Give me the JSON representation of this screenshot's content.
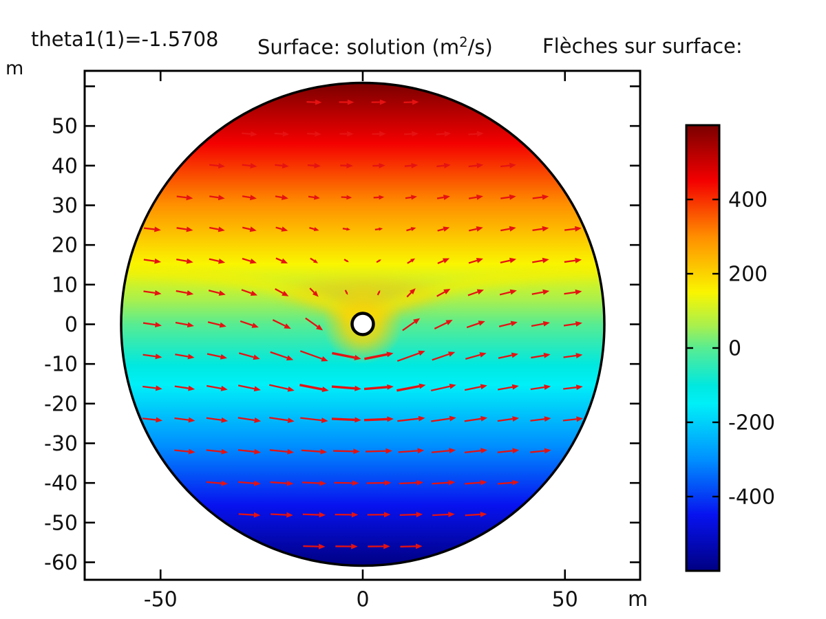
{
  "title": {
    "param": "theta1(1)=-1.5708",
    "surface_pre": "Surface: solution (m",
    "surface_sup": "2",
    "surface_post": "/s)",
    "arrows": "Flèches sur surface:"
  },
  "axes": {
    "x": {
      "unit_label": "m",
      "tick_labels": [
        "-50",
        "0",
        "50"
      ],
      "tick_values": [
        -50,
        0,
        50
      ]
    },
    "y": {
      "unit_label": "m",
      "tick_labels": [
        "50",
        "40",
        "30",
        "20",
        "10",
        "0",
        "-10",
        "-20",
        "-30",
        "-40",
        "-50",
        "-60"
      ],
      "tick_values": [
        50,
        40,
        30,
        20,
        10,
        0,
        -10,
        -20,
        -30,
        -40,
        -50,
        -60
      ],
      "frame_tick_values": [
        60,
        50,
        40,
        30,
        20,
        10,
        0,
        -10,
        -20,
        -30,
        -40,
        -50,
        -60
      ]
    }
  },
  "colorbar": {
    "tick_labels": [
      "400",
      "200",
      "0",
      "-200",
      "-400"
    ],
    "tick_values": [
      400,
      200,
      0,
      -200,
      -400
    ],
    "value_range": [
      -600,
      600
    ],
    "colormap": "rainbow-jet",
    "stops": [
      [
        "#7A0000",
        0.0
      ],
      [
        "#F40000",
        0.125
      ],
      [
        "#FF8E00",
        0.25
      ],
      [
        "#FAF500",
        0.375
      ],
      [
        "#A8F04E",
        0.45
      ],
      [
        "#58EC92",
        0.5
      ],
      [
        "#00E8E0",
        0.585
      ],
      [
        "#00F0F8",
        0.625
      ],
      [
        "#0090FF",
        0.75
      ],
      [
        "#0712EF",
        0.875
      ],
      [
        "#000082",
        1.0
      ]
    ]
  },
  "chart_data": {
    "type": "heatmap",
    "title": "theta1(1)=-1.5708  Surface: solution (m2/s)  Flèches sur surface:",
    "xlabel": "m",
    "ylabel": "m",
    "axis_ranges": {
      "x": [
        -69,
        69
      ],
      "y": [
        -64,
        64
      ]
    },
    "surface": {
      "quantity": "solution",
      "units": "m2/s",
      "colormap": "rainbow-jet",
      "value_range_estimate": [
        -600,
        600
      ],
      "domain": {
        "shape": "circle",
        "radius_m": 60,
        "center_m": [
          0,
          0
        ],
        "hole": {
          "center_m": [
            0,
            0
          ],
          "radius_m": 3
        }
      },
      "far_field_profile": "value ~ 10 * y : dark red (+600) at top rim, yellow near y=+15, green at y=0, cyan near y=-17, dark blue (-600) at bottom rim",
      "local_feature": "bright yellow halo around central hole with V-shaped yellow wake rising toward both sides"
    },
    "arrow_field": {
      "color": "#E51212",
      "grid_spacing_m": 8,
      "grid_x_offset_m": 4,
      "description": "red quiver arrows, mainly +x; shorter near top, longer near bottom, deflected around central hole, strongest just below hole",
      "params": {
        "U": 1,
        "a": 3,
        "C": 30,
        "s2": 120,
        "rdecay": 35,
        "vscale": 0.65,
        "len_scale": 27,
        "len_min": 8,
        "len_max": 43
      }
    }
  }
}
